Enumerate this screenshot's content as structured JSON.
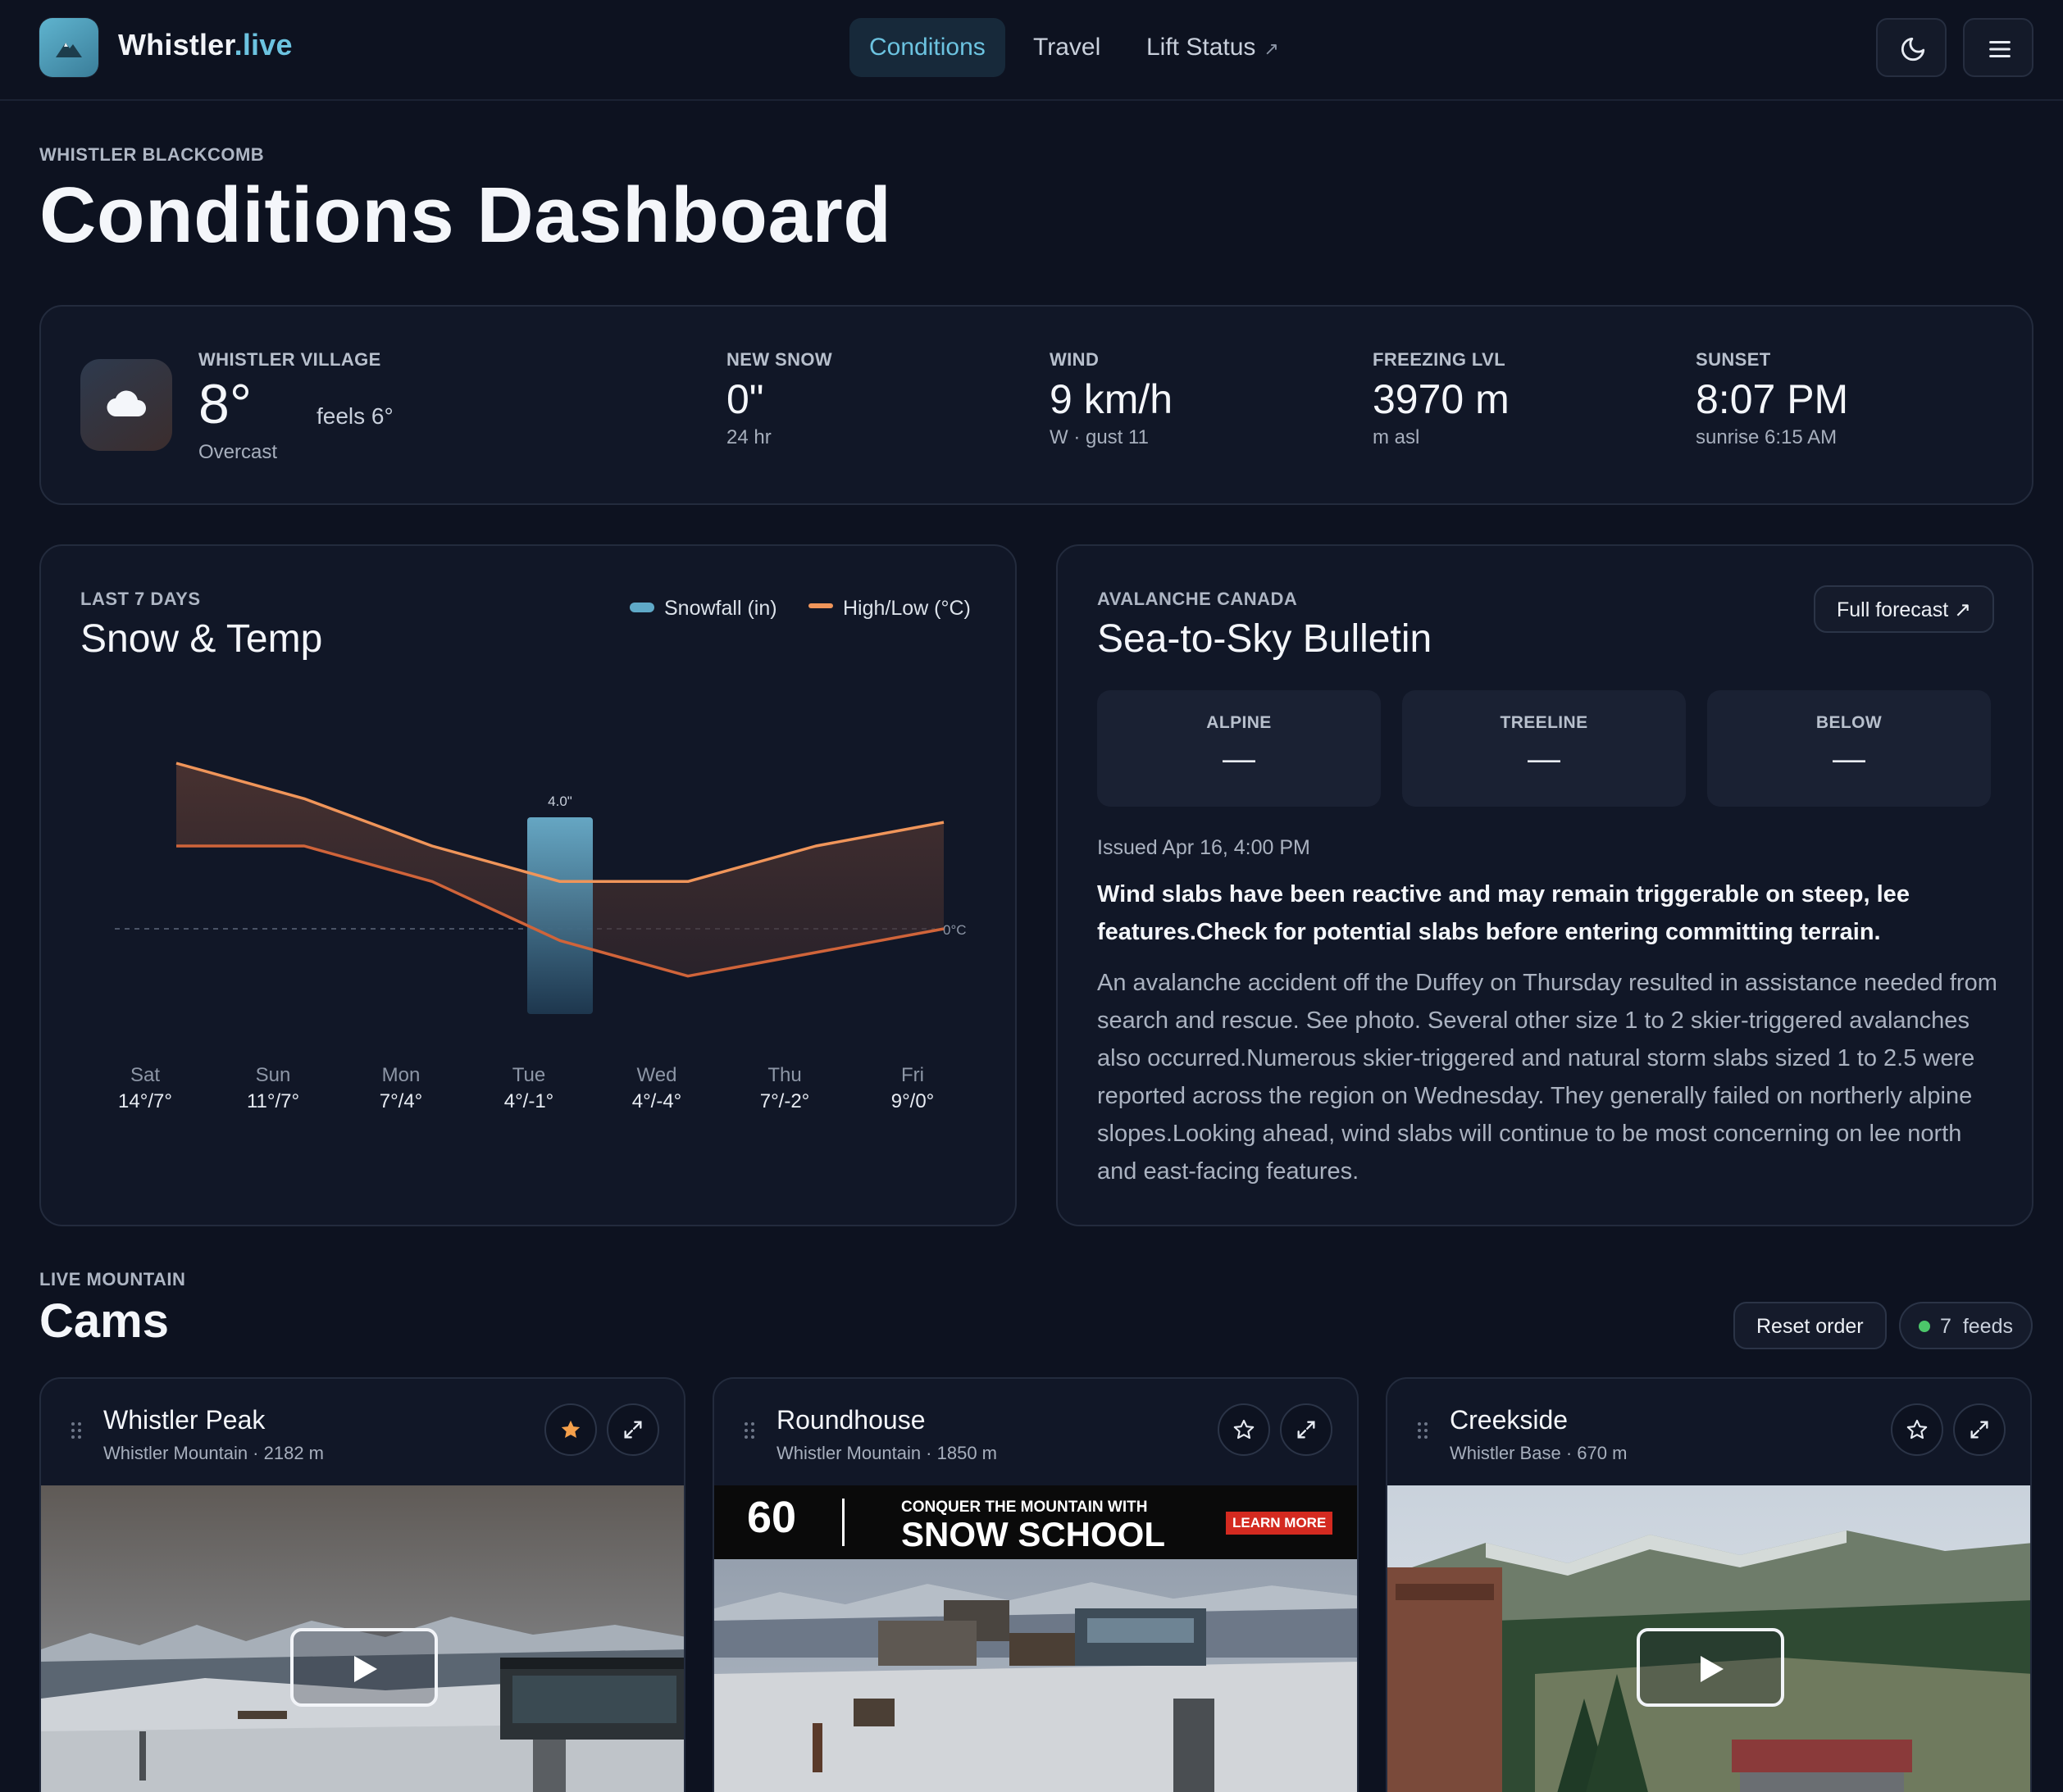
{
  "nav": {
    "brand_name": "Whistler",
    "brand_tld": ".live",
    "links": [
      {
        "label": "Conditions",
        "active": true
      },
      {
        "label": "Travel",
        "active": false
      },
      {
        "label": "Lift Status",
        "active": false,
        "external_icon": "↗"
      }
    ],
    "theme_toggle_icon": "moon-icon",
    "menu_icon": "hamburger-icon"
  },
  "header": {
    "eyebrow": "WHISTLER BLACKCOMB",
    "title": "Conditions Dashboard"
  },
  "current": {
    "location_label": "WHISTLER VILLAGE",
    "temp": "8°",
    "feels": "feels 6°",
    "summary": "Overcast",
    "icon": "cloud-icon",
    "stats": [
      {
        "label": "NEW SNOW",
        "value": "0\"",
        "sub": "24 hr"
      },
      {
        "label": "WIND",
        "value": "9 km/h",
        "sub": "W · gust 11"
      },
      {
        "label": "FREEZING LVL",
        "value": "3970 m",
        "sub": "m asl"
      },
      {
        "label": "SUNSET",
        "value": "8:07 PM",
        "sub": "sunrise 6:15 AM"
      }
    ]
  },
  "snow_temp": {
    "eyebrow": "LAST 7 DAYS",
    "title": "Snow & Temp",
    "legend": {
      "snowfall": "Snowfall (in)",
      "highlow": "High/Low (°C)"
    },
    "zero_label": "0°C",
    "snow_label": "4.0\"",
    "days": [
      {
        "name": "Sat",
        "temps": "14°/7°"
      },
      {
        "name": "Sun",
        "temps": "11°/7°"
      },
      {
        "name": "Mon",
        "temps": "7°/4°"
      },
      {
        "name": "Tue",
        "temps": "4°/-1°"
      },
      {
        "name": "Wed",
        "temps": "4°/-4°"
      },
      {
        "name": "Thu",
        "temps": "7°/-2°"
      },
      {
        "name": "Fri",
        "temps": "9°/0°"
      }
    ]
  },
  "chart_data": {
    "type": "area",
    "title": "Snow & Temp",
    "categories": [
      "Sat",
      "Sun",
      "Mon",
      "Tue",
      "Wed",
      "Thu",
      "Fri"
    ],
    "series": [
      {
        "name": "High (°C)",
        "values": [
          14,
          11,
          7,
          4,
          4,
          7,
          9
        ]
      },
      {
        "name": "Low (°C)",
        "values": [
          7,
          7,
          4,
          -1,
          -4,
          -2,
          0
        ]
      },
      {
        "name": "Snowfall (in)",
        "type": "bar",
        "values": [
          0,
          0,
          0,
          4.0,
          0,
          0,
          0
        ]
      }
    ],
    "ylim": [
      -6,
      16
    ],
    "reference_line": {
      "value": 0,
      "label": "0°C"
    },
    "legend": [
      "Snowfall (in)",
      "High/Low (°C)"
    ]
  },
  "bulletin": {
    "eyebrow": "AVALANCHE CANADA",
    "title": "Sea-to-Sky Bulletin",
    "full_forecast_label": "Full forecast ↗",
    "ratings": [
      {
        "label": "ALPINE",
        "value": "—"
      },
      {
        "label": "TREELINE",
        "value": "—"
      },
      {
        "label": "BELOW",
        "value": "—"
      }
    ],
    "issued": "Issued Apr 16, 4:00 PM",
    "highlight": "Wind slabs have been reactive and may remain triggerable on steep, lee features.Check for potential slabs before entering committing terrain.",
    "body": "An avalanche accident off the Duffey on Thursday resulted in assistance needed from search and rescue. See photo. Several other size 1 to 2 skier-triggered avalanches also occurred.Numerous skier-triggered and natural storm slabs sized 1 to 2.5 were reported across the region on Wednesday. They generally failed on northerly alpine slopes.Looking ahead, wind slabs will continue to be most concerning on lee north and east-facing features."
  },
  "cams": {
    "eyebrow": "LIVE MOUNTAIN",
    "title": "Cams",
    "reset_label": "Reset order",
    "feeds_count": "7",
    "feeds_label": "feeds",
    "items": [
      {
        "title": "Whistler Peak",
        "sub": "Whistler Mountain · 2182 m",
        "favorited": true
      },
      {
        "title": "Roundhouse",
        "sub": "Whistler Mountain · 1850 m",
        "favorited": false,
        "ad": {
          "badge": "60",
          "line1": "CONQUER THE MOUNTAIN WITH",
          "line2": "SNOW SCHOOL",
          "cta": "LEARN MORE"
        }
      },
      {
        "title": "Creekside",
        "sub": "Whistler Base · 670 m",
        "favorited": false
      }
    ]
  },
  "colors": {
    "background": "#0d1220",
    "card": "#111727",
    "accent": "#6cc3e0",
    "high_line": "#f0955a",
    "low_line": "#d0643a",
    "snow_bar": "#5fa9c8",
    "star": "#f5a04b",
    "live_dot": "#4cc76a"
  }
}
